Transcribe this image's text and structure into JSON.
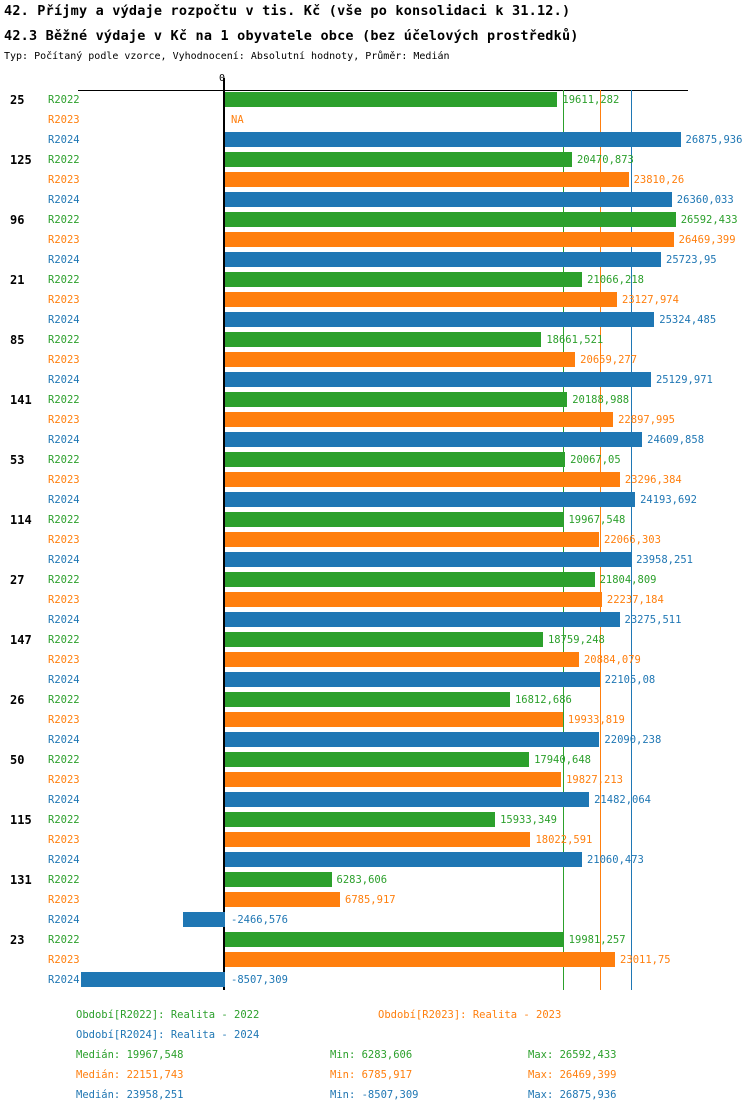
{
  "title": {
    "line1": "42. Příjmy a výdaje rozpočtu v tis. Kč (vše po konsolidaci k 31.12.)",
    "line2": "42.3 Běžné výdaje v Kč na 1 obyvatele obce (bez účelových prostředků)",
    "subtitle": "Typ: Počítaný podle vzorce, Vyhodnocení: Absolutní hodnoty, Průměr: Medián"
  },
  "axis": {
    "zero_label": "0"
  },
  "colors": {
    "r2022": "#2ca02c",
    "r2023": "#ff7f0e",
    "r2024": "#1f77b4",
    "axis": "#000000"
  },
  "chart_data": {
    "type": "bar",
    "orientation": "horizontal",
    "categories": [
      "25",
      "125",
      "96",
      "21",
      "85",
      "141",
      "53",
      "114",
      "27",
      "147",
      "26",
      "50",
      "115",
      "131",
      "23"
    ],
    "series": [
      {
        "name": "R2022",
        "color": "#2ca02c",
        "values": [
          19611.282,
          20470.873,
          26592.433,
          21066.218,
          18661.521,
          20188.988,
          20067.05,
          19967.548,
          21804.809,
          18759.248,
          16812.686,
          17940.648,
          15933.349,
          6283.606,
          19981.257
        ],
        "labels": [
          "19611,282",
          "20470,873",
          "26592,433",
          "21066,218",
          "18661,521",
          "20188,988",
          "20067,05",
          "19967,548",
          "21804,809",
          "18759,248",
          "16812,686",
          "17940,648",
          "15933,349",
          "6283,606",
          "19981,257"
        ]
      },
      {
        "name": "R2023",
        "color": "#ff7f0e",
        "values": [
          null,
          23810.26,
          26469.399,
          23127.974,
          20659.277,
          22897.995,
          23296.384,
          22066.303,
          22237.184,
          20884.079,
          19933.819,
          19827.213,
          18022.591,
          6785.917,
          23011.75
        ],
        "labels": [
          "NA",
          "23810,26",
          "26469,399",
          "23127,974",
          "20659,277",
          "22897,995",
          "23296,384",
          "22066,303",
          "22237,184",
          "20884,079",
          "19933,819",
          "19827,213",
          "18022,591",
          "6785,917",
          "23011,75"
        ]
      },
      {
        "name": "R2024",
        "color": "#1f77b4",
        "values": [
          26875.936,
          26360.033,
          25723.95,
          25324.485,
          25129.971,
          24609.858,
          24193.692,
          23958.251,
          23275.511,
          22105.08,
          22090.238,
          21482.064,
          21060.473,
          -2466.576,
          -8507.309
        ],
        "labels": [
          "26875,936",
          "26360,033",
          "25723,95",
          "25324,485",
          "25129,971",
          "24609,858",
          "24193,692",
          "23958,251",
          "23275,511",
          "22105,08",
          "22090,238",
          "21482,064",
          "21060,473",
          "-2466,576",
          "-8507,309"
        ]
      }
    ],
    "medians": [
      19967.548,
      22151.743,
      23958.251
    ],
    "na_text": "NA",
    "grid": "off",
    "xlim": [
      -9000,
      28000
    ]
  },
  "footer": {
    "legend": {
      "r2022": "Období[R2022]: Realita - 2022",
      "r2023": "Období[R2023]: Realita - 2023",
      "r2024": "Období[R2024]: Realita - 2024"
    },
    "stats": [
      {
        "median": "Medián: 19967,548",
        "min": "Min: 6283,606",
        "max": "Max: 26592,433"
      },
      {
        "median": "Medián: 22151,743",
        "min": "Min: 6785,917",
        "max": "Max: 26469,399"
      },
      {
        "median": "Medián: 23958,251",
        "min": "Min: -8507,309",
        "max": "Max: 26875,936"
      }
    ]
  }
}
